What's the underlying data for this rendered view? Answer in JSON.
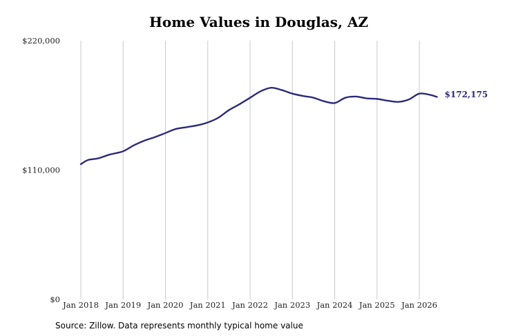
{
  "chart_data": {
    "type": "line",
    "title": "Home Values in Douglas, AZ",
    "source": "Source: Zillow. Data represents monthly typical home value",
    "xlabel": "",
    "ylabel": "",
    "ylim": [
      0,
      220000
    ],
    "xlim": [
      "2018-01",
      "2026-06"
    ],
    "grid": "vertical",
    "y_ticks": [
      {
        "value": 0,
        "label": "$0"
      },
      {
        "value": 110000,
        "label": "$110,000"
      },
      {
        "value": 220000,
        "label": "$220,000"
      }
    ],
    "x_ticks": [
      {
        "value": "2018-01",
        "label": "Jan 2018"
      },
      {
        "value": "2019-01",
        "label": "Jan 2019"
      },
      {
        "value": "2020-01",
        "label": "Jan 2020"
      },
      {
        "value": "2021-01",
        "label": "Jan 2021"
      },
      {
        "value": "2022-01",
        "label": "Jan 2022"
      },
      {
        "value": "2023-01",
        "label": "Jan 2023"
      },
      {
        "value": "2024-01",
        "label": "Jan 2024"
      },
      {
        "value": "2025-01",
        "label": "Jan 2025"
      },
      {
        "value": "2026-01",
        "label": "Jan 2026"
      }
    ],
    "end_label": "$172,175",
    "series": [
      {
        "color": "#2a2a7a",
        "x": [
          "2018-01",
          "2018-03",
          "2018-06",
          "2018-09",
          "2019-01",
          "2019-04",
          "2019-07",
          "2019-10",
          "2020-01",
          "2020-04",
          "2020-07",
          "2020-10",
          "2021-01",
          "2021-04",
          "2021-07",
          "2021-10",
          "2022-01",
          "2022-04",
          "2022-07",
          "2022-10",
          "2023-01",
          "2023-04",
          "2023-07",
          "2023-10",
          "2024-01",
          "2024-04",
          "2024-07",
          "2024-10",
          "2025-01",
          "2025-04",
          "2025-07",
          "2025-10",
          "2026-01",
          "2026-04",
          "2026-06"
        ],
        "values": [
          115000,
          118500,
          120000,
          123000,
          126000,
          131000,
          135000,
          138000,
          141500,
          145000,
          146500,
          148000,
          150500,
          154500,
          161000,
          166000,
          171500,
          177000,
          180000,
          178000,
          175000,
          173000,
          171500,
          168500,
          167000,
          171500,
          172500,
          171000,
          170500,
          169000,
          168000,
          170000,
          175000,
          174000,
          172175
        ]
      }
    ]
  }
}
